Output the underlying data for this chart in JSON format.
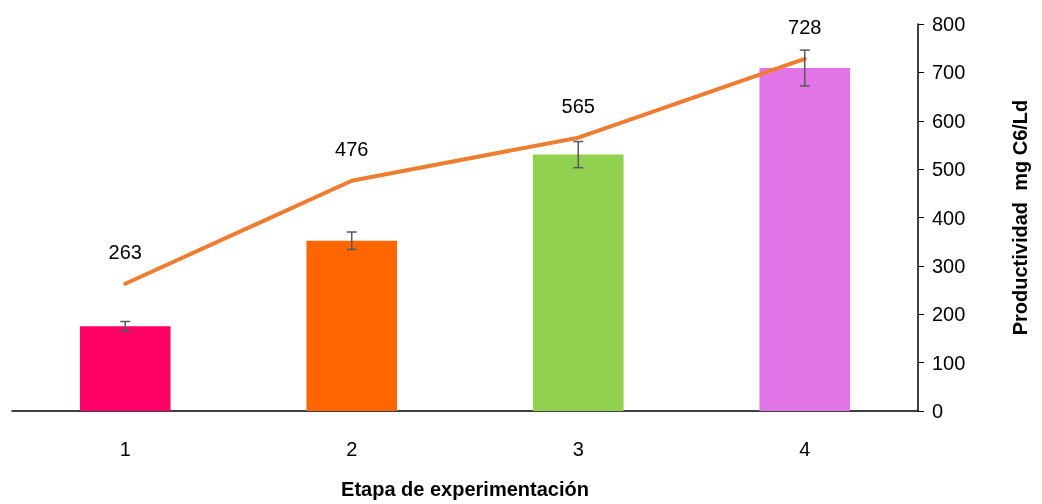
{
  "chart_data": {
    "type": "bar",
    "xlabel": "Etapa de experimentación",
    "ylabel": "Productividad  mg C6/Ld",
    "categories": [
      "1",
      "2",
      "3",
      "4"
    ],
    "series": [
      {
        "colors": [
          "#ff0066",
          "#ff6600",
          "#92d050",
          "#e175e8"
        ],
        "values": [
          175,
          352,
          530,
          709
        ],
        "errors": [
          10,
          18,
          27,
          37
        ]
      },
      {
        "type": "line",
        "color": "#ed7d31",
        "values": [
          263,
          476,
          565,
          728
        ],
        "value_labels": [
          "263",
          "476",
          "565",
          "728"
        ],
        "marker": "none"
      }
    ],
    "ylim": [
      0,
      800
    ],
    "yticks": [
      0,
      100,
      200,
      300,
      400,
      500,
      600,
      700,
      800
    ],
    "grid": false
  }
}
